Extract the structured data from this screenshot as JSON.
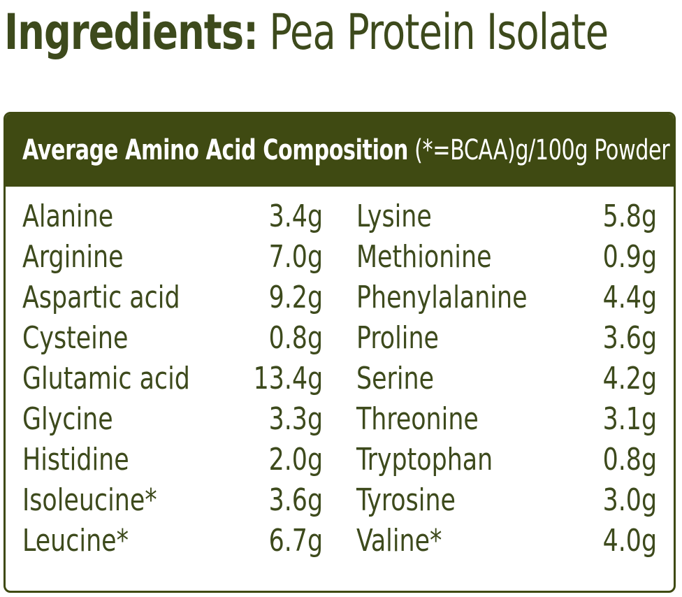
{
  "heading": {
    "bold": "Ingredients:",
    "rest": "Pea Protein Isolate"
  },
  "table": {
    "title_bold": "Average Amino Acid Composition",
    "title_rest": "(*=BCAA)g/100g Powder",
    "left": [
      {
        "name": "Alanine",
        "amount": "3.4g"
      },
      {
        "name": "Arginine",
        "amount": "7.0g"
      },
      {
        "name": "Aspartic acid",
        "amount": "9.2g"
      },
      {
        "name": "Cysteine",
        "amount": "0.8g"
      },
      {
        "name": "Glutamic acid",
        "amount": "13.4g"
      },
      {
        "name": "Glycine",
        "amount": "3.3g"
      },
      {
        "name": "Histidine",
        "amount": "2.0g"
      },
      {
        "name": "Isoleucine*",
        "amount": "3.6g"
      },
      {
        "name": "Leucine*",
        "amount": "6.7g"
      }
    ],
    "right": [
      {
        "name": "Lysine",
        "amount": "5.8g"
      },
      {
        "name": "Methionine",
        "amount": "0.9g"
      },
      {
        "name": "Phenylalanine",
        "amount": "4.4g"
      },
      {
        "name": "Proline",
        "amount": "3.6g"
      },
      {
        "name": "Serine",
        "amount": "4.2g"
      },
      {
        "name": "Threonine",
        "amount": "3.1g"
      },
      {
        "name": "Tryptophan",
        "amount": "0.8g"
      },
      {
        "name": "Tyrosine",
        "amount": "3.0g"
      },
      {
        "name": "Valine*",
        "amount": "4.0g"
      }
    ]
  },
  "colors": {
    "text": "#3d4a1c",
    "header_bg": "#3f4a12"
  }
}
